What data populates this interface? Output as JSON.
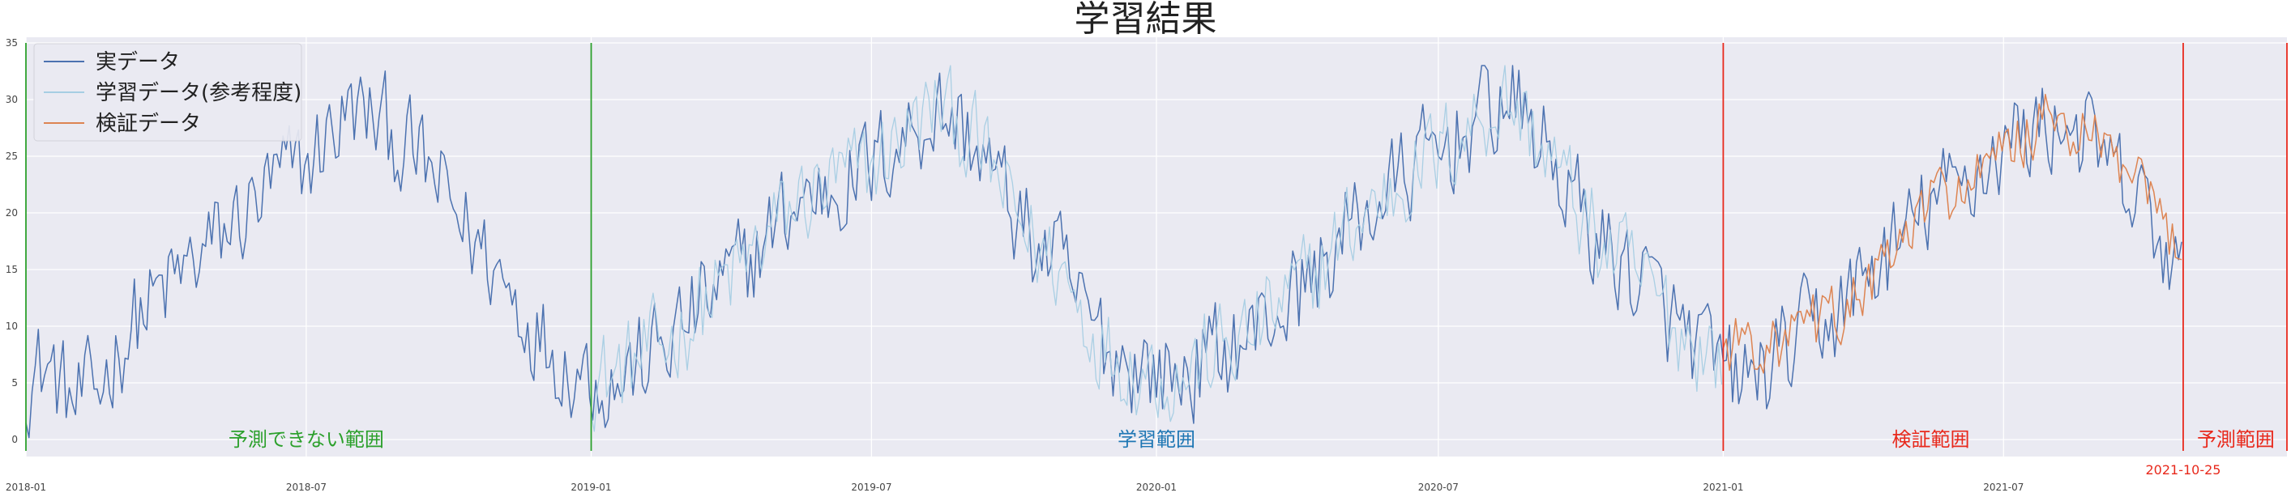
{
  "chart_data": {
    "type": "line",
    "title": "学習結果",
    "xlabel": "",
    "ylabel": "",
    "x_range": [
      "2018-01-01",
      "2021-12-31"
    ],
    "ylim": [
      -1.5,
      35.5
    ],
    "grid": true,
    "legend_position": "top-left",
    "x_ticks": [
      "2018-01",
      "2018-07",
      "2019-01",
      "2019-07",
      "2020-01",
      "2020-07",
      "2021-01",
      "2021-07"
    ],
    "y_ticks": [
      0,
      5,
      10,
      15,
      20,
      25,
      30,
      35
    ],
    "series": [
      {
        "name": "実データ",
        "color": "#4c72b0",
        "x_start": "2018-01-01",
        "x_end": "2021-10-25",
        "points": [
          [
            "2018-01-01",
            5.5
          ],
          [
            "2018-01-15",
            6.5
          ],
          [
            "2018-02-01",
            3
          ],
          [
            "2018-02-15",
            4
          ],
          [
            "2018-03-01",
            8
          ],
          [
            "2018-03-15",
            11
          ],
          [
            "2018-04-01",
            13
          ],
          [
            "2018-04-15",
            15
          ],
          [
            "2018-05-01",
            17
          ],
          [
            "2018-05-15",
            19
          ],
          [
            "2018-06-01",
            21
          ],
          [
            "2018-06-15",
            23
          ],
          [
            "2018-07-01",
            24
          ],
          [
            "2018-07-15",
            27
          ],
          [
            "2018-08-01",
            29
          ],
          [
            "2018-08-15",
            28
          ],
          [
            "2018-09-01",
            26
          ],
          [
            "2018-09-15",
            24
          ],
          [
            "2018-10-01",
            21
          ],
          [
            "2018-10-15",
            18
          ],
          [
            "2018-11-01",
            15
          ],
          [
            "2018-11-15",
            12
          ],
          [
            "2018-12-01",
            9
          ],
          [
            "2018-12-15",
            7
          ],
          [
            "2019-01-01",
            6
          ],
          [
            "2019-01-15",
            5
          ],
          [
            "2019-02-01",
            6.5
          ],
          [
            "2019-02-15",
            8
          ],
          [
            "2019-03-01",
            10
          ],
          [
            "2019-03-15",
            12
          ],
          [
            "2019-04-01",
            14
          ],
          [
            "2019-04-15",
            16
          ],
          [
            "2019-05-01",
            19
          ],
          [
            "2019-05-15",
            21
          ],
          [
            "2019-06-01",
            22
          ],
          [
            "2019-06-15",
            23
          ],
          [
            "2019-07-01",
            24
          ],
          [
            "2019-07-15",
            26
          ],
          [
            "2019-08-01",
            28
          ],
          [
            "2019-08-15",
            29
          ],
          [
            "2019-09-01",
            27
          ],
          [
            "2019-09-15",
            24
          ],
          [
            "2019-10-01",
            20
          ],
          [
            "2019-10-15",
            17
          ],
          [
            "2019-11-01",
            15
          ],
          [
            "2019-11-15",
            11
          ],
          [
            "2019-12-01",
            8
          ],
          [
            "2019-12-15",
            7
          ],
          [
            "2020-01-01",
            6
          ],
          [
            "2020-01-15",
            5.5
          ],
          [
            "2020-02-01",
            7
          ],
          [
            "2020-02-15",
            8
          ],
          [
            "2020-03-01",
            9
          ],
          [
            "2020-03-15",
            11
          ],
          [
            "2020-04-01",
            13
          ],
          [
            "2020-04-15",
            15
          ],
          [
            "2020-05-01",
            18
          ],
          [
            "2020-05-15",
            20
          ],
          [
            "2020-06-01",
            22
          ],
          [
            "2020-06-15",
            24
          ],
          [
            "2020-07-01",
            25
          ],
          [
            "2020-07-15",
            27
          ],
          [
            "2020-08-01",
            29
          ],
          [
            "2020-08-15",
            30
          ],
          [
            "2020-09-01",
            27
          ],
          [
            "2020-09-15",
            24
          ],
          [
            "2020-10-01",
            20
          ],
          [
            "2020-10-15",
            17
          ],
          [
            "2020-11-01",
            15
          ],
          [
            "2020-11-15",
            13
          ],
          [
            "2020-12-01",
            10
          ],
          [
            "2020-12-15",
            8
          ],
          [
            "2021-01-01",
            6
          ],
          [
            "2021-01-15",
            5
          ],
          [
            "2021-02-01",
            6.5
          ],
          [
            "2021-02-15",
            8
          ],
          [
            "2021-03-01",
            10
          ],
          [
            "2021-03-15",
            11
          ],
          [
            "2021-04-01",
            14
          ],
          [
            "2021-04-15",
            16
          ],
          [
            "2021-05-01",
            18
          ],
          [
            "2021-05-15",
            21
          ],
          [
            "2021-06-01",
            22
          ],
          [
            "2021-06-15",
            24
          ],
          [
            "2021-07-01",
            26
          ],
          [
            "2021-07-15",
            27
          ],
          [
            "2021-08-01",
            28
          ],
          [
            "2021-08-15",
            28
          ],
          [
            "2021-09-01",
            25
          ],
          [
            "2021-09-15",
            22
          ],
          [
            "2021-10-01",
            20
          ],
          [
            "2021-10-15",
            16
          ],
          [
            "2021-10-25",
            13
          ]
        ]
      },
      {
        "name": "学習データ(参考程度)",
        "color": "#a6cee3",
        "x_start": "2019-01-01",
        "x_end": "2020-12-31",
        "points": [
          [
            "2019-01-01",
            6
          ],
          [
            "2019-01-15",
            5.5
          ],
          [
            "2019-02-01",
            7
          ],
          [
            "2019-02-15",
            8
          ],
          [
            "2019-03-01",
            10
          ],
          [
            "2019-03-15",
            12
          ],
          [
            "2019-04-01",
            14
          ],
          [
            "2019-04-15",
            16
          ],
          [
            "2019-05-01",
            19
          ],
          [
            "2019-05-15",
            21
          ],
          [
            "2019-06-01",
            22
          ],
          [
            "2019-06-15",
            23
          ],
          [
            "2019-07-01",
            24
          ],
          [
            "2019-07-15",
            26
          ],
          [
            "2019-08-01",
            28
          ],
          [
            "2019-08-15",
            29.5
          ],
          [
            "2019-09-01",
            27
          ],
          [
            "2019-09-15",
            24
          ],
          [
            "2019-10-01",
            20
          ],
          [
            "2019-10-15",
            17
          ],
          [
            "2019-11-01",
            15
          ],
          [
            "2019-11-15",
            11
          ],
          [
            "2019-12-01",
            8
          ],
          [
            "2019-12-15",
            7
          ],
          [
            "2020-01-01",
            6
          ],
          [
            "2020-01-15",
            5.5
          ],
          [
            "2020-02-01",
            7
          ],
          [
            "2020-02-15",
            8
          ],
          [
            "2020-03-01",
            9
          ],
          [
            "2020-03-15",
            11
          ],
          [
            "2020-04-01",
            13
          ],
          [
            "2020-04-15",
            15
          ],
          [
            "2020-05-01",
            18
          ],
          [
            "2020-05-15",
            20
          ],
          [
            "2020-06-01",
            22
          ],
          [
            "2020-06-15",
            24
          ],
          [
            "2020-07-01",
            25
          ],
          [
            "2020-07-15",
            27
          ],
          [
            "2020-08-01",
            29
          ],
          [
            "2020-08-15",
            30
          ],
          [
            "2020-09-01",
            27
          ],
          [
            "2020-09-15",
            24
          ],
          [
            "2020-10-01",
            20
          ],
          [
            "2020-10-15",
            17
          ],
          [
            "2020-11-01",
            15
          ],
          [
            "2020-11-15",
            13
          ],
          [
            "2020-12-01",
            10
          ],
          [
            "2020-12-31",
            7
          ]
        ]
      },
      {
        "name": "検証データ",
        "color": "#dd8452",
        "x_start": "2021-01-01",
        "x_end": "2021-10-25",
        "points": [
          [
            "2021-01-01",
            8
          ],
          [
            "2021-01-15",
            9
          ],
          [
            "2021-02-01",
            8
          ],
          [
            "2021-02-15",
            9
          ],
          [
            "2021-03-01",
            10
          ],
          [
            "2021-03-15",
            11
          ],
          [
            "2021-04-01",
            13
          ],
          [
            "2021-04-15",
            15
          ],
          [
            "2021-05-01",
            18
          ],
          [
            "2021-05-15",
            21
          ],
          [
            "2021-06-01",
            22
          ],
          [
            "2021-06-15",
            23
          ],
          [
            "2021-07-01",
            25
          ],
          [
            "2021-07-15",
            27
          ],
          [
            "2021-08-01",
            28
          ],
          [
            "2021-08-15",
            27
          ],
          [
            "2021-09-01",
            26
          ],
          [
            "2021-09-15",
            24
          ],
          [
            "2021-10-01",
            21
          ],
          [
            "2021-10-15",
            18
          ],
          [
            "2021-10-25",
            17
          ]
        ]
      }
    ],
    "vertical_lines": [
      {
        "x": "2018-01-01",
        "color": "#2ca02c"
      },
      {
        "x": "2019-01-01",
        "color": "#2ca02c"
      },
      {
        "x": "2021-01-01",
        "color": "#e8291c"
      },
      {
        "x": "2021-10-25",
        "color": "#e8291c"
      },
      {
        "x": "2021-12-31",
        "color": "#e8291c"
      }
    ],
    "annotations": [
      {
        "text": "予測できない範囲",
        "x": "2018-07-01",
        "y": 0,
        "color": "#2ca02c"
      },
      {
        "text": "学習範囲",
        "x": "2020-01-01",
        "y": 0,
        "color": "#1f77b4"
      },
      {
        "text": "検証範囲",
        "x": "2021-05-15",
        "y": 0,
        "color": "#e8291c"
      },
      {
        "text": "予測範囲",
        "x": "2021-11-28",
        "y": 0,
        "color": "#e8291c"
      },
      {
        "text": "2021-10-25",
        "x": "2021-10-25",
        "y": -2,
        "color": "#e8291c"
      }
    ]
  }
}
